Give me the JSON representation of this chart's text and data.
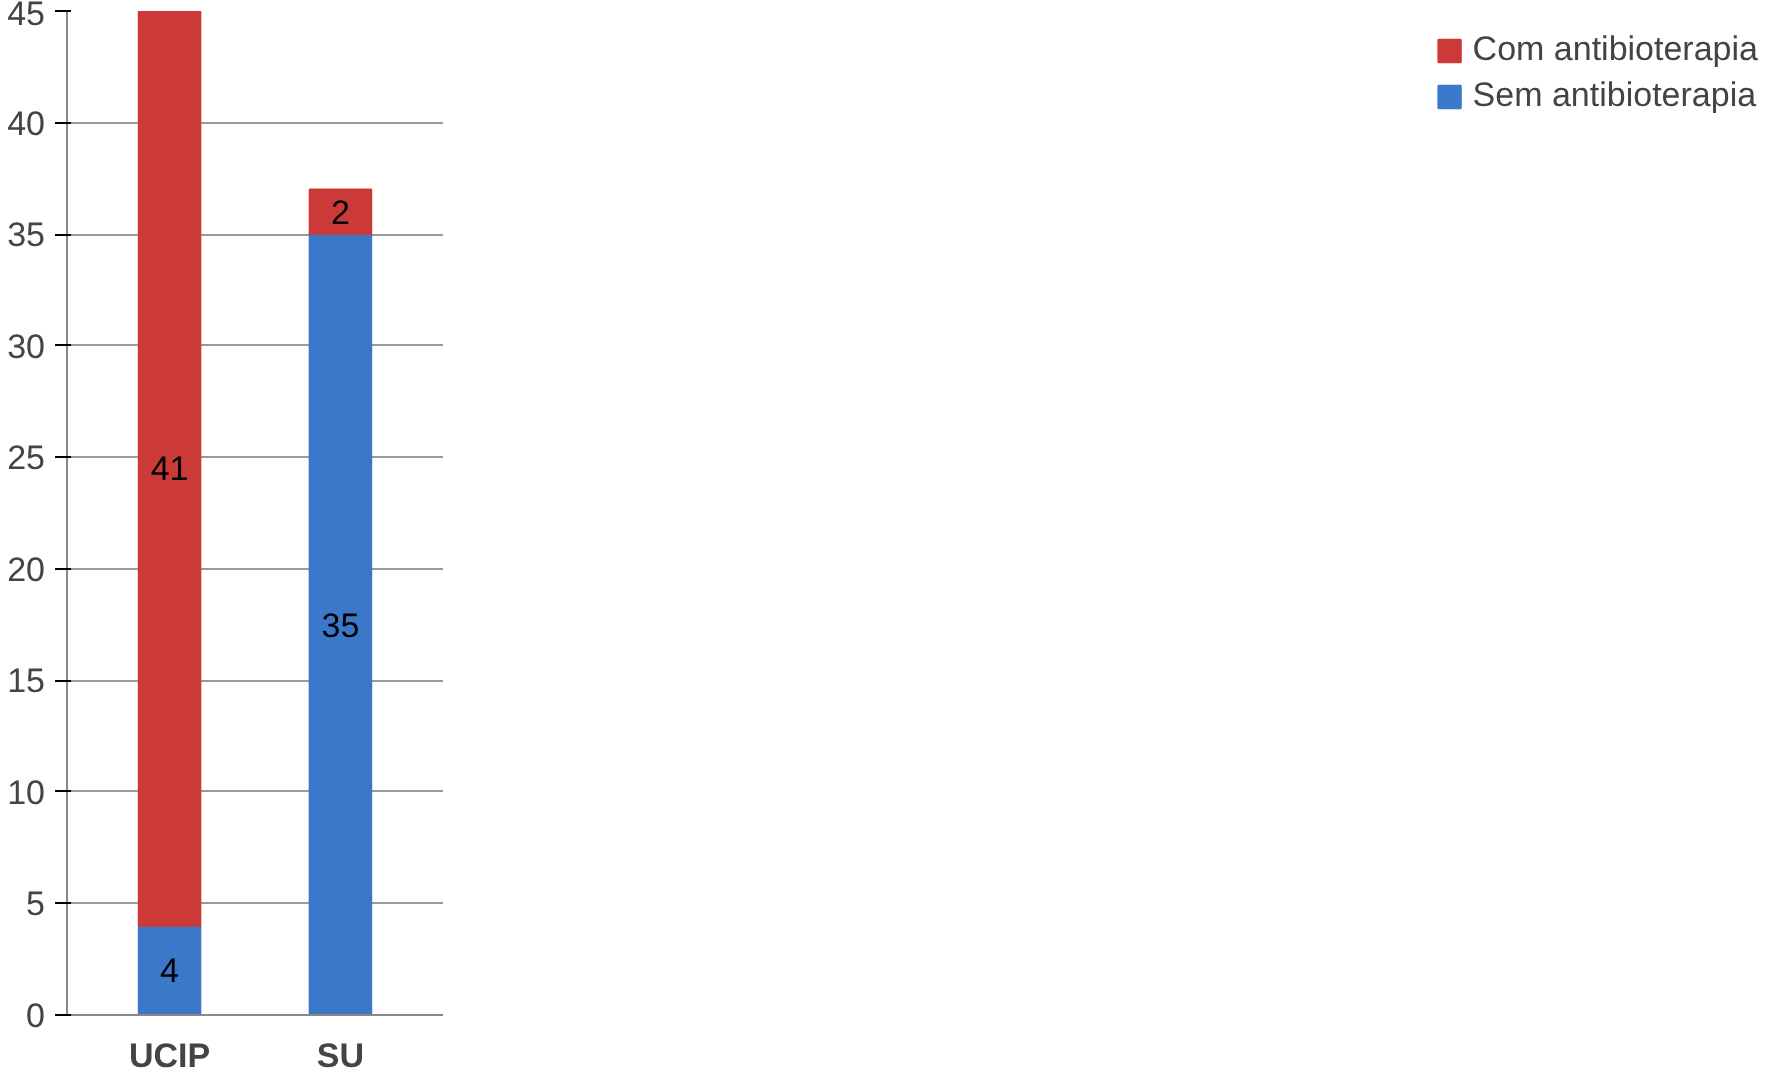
{
  "chart_data": {
    "type": "bar",
    "stacked": true,
    "categories": [
      "UCIP",
      "SU"
    ],
    "series": [
      {
        "name": "Sem antibioterapia",
        "color": "#3b78c9",
        "values": [
          4,
          35
        ]
      },
      {
        "name": "Com antibioterapia",
        "color": "#cc3a37",
        "values": [
          41,
          2
        ]
      }
    ],
    "ylim": [
      0,
      45
    ],
    "yticks": [
      0,
      5,
      10,
      15,
      20,
      25,
      30,
      35,
      40,
      45
    ],
    "grid": "y",
    "legend": "right",
    "data_labels": true
  }
}
